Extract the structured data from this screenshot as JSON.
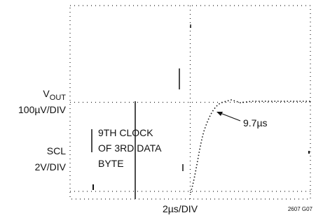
{
  "chart_data": {
    "type": "oscilloscope",
    "x_label": "2µs/DIV",
    "y_labels": [
      {
        "name": "V",
        "subscript": "OUT",
        "scale": "100µV/DIV"
      },
      {
        "name": "SCL",
        "scale": "2V/DIV"
      }
    ],
    "annotations": [
      "9TH CLOCK",
      "OF 3RD DATA",
      "BYTE",
      "9.7µs"
    ],
    "figure_id": "2607 G07"
  }
}
